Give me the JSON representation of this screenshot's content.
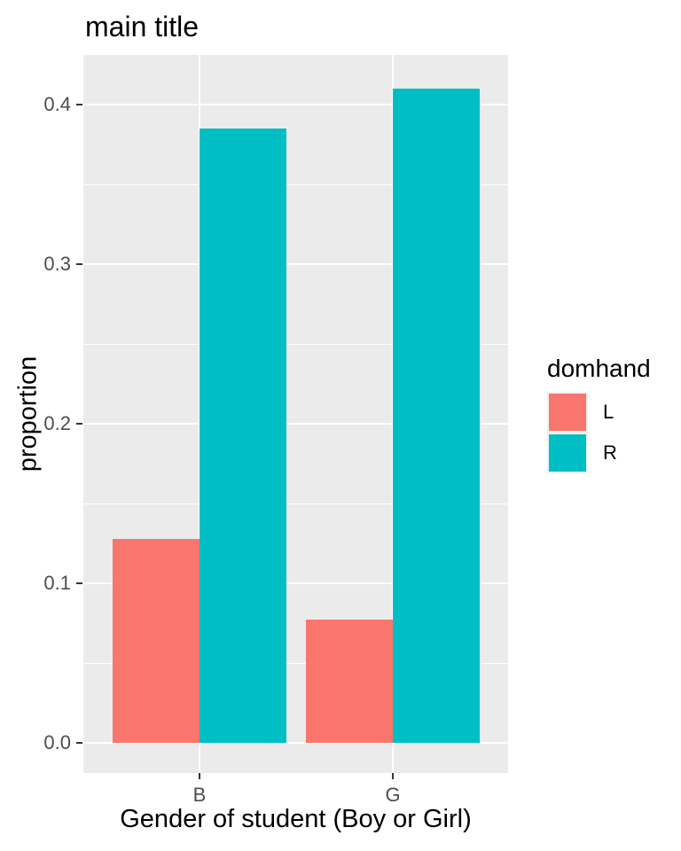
{
  "chart_data": {
    "type": "bar",
    "mode": "dodged",
    "title": "main title",
    "xlabel": "Gender of student (Boy or Girl)",
    "ylabel": "proportion",
    "categories": [
      "B",
      "G"
    ],
    "series": [
      {
        "name": "L",
        "color": "#F8766D",
        "values": [
          0.128,
          0.077
        ]
      },
      {
        "name": "R",
        "color": "#00BFC4",
        "values": [
          0.385,
          0.41
        ]
      }
    ],
    "ylim": [
      0,
      0.43
    ],
    "yticks": [
      "0.0",
      "0.1",
      "0.2",
      "0.3",
      "0.4"
    ],
    "yticks_minor": [
      0.05,
      0.15,
      0.25,
      0.35
    ],
    "grid": "white major and minor horizontal gridlines plus vertical major gridlines on gray panel",
    "legend": {
      "title": "domhand",
      "position": "right",
      "entries": [
        "L",
        "R"
      ]
    }
  },
  "colors": {
    "background": "#FFFFFF",
    "panel_background": "#EBEBEB",
    "gridline": "#FFFFFF",
    "bar_L": "#F8766D",
    "bar_R": "#00BFC4",
    "tick_label": "#4D4D4D",
    "tick_mark": "#333333",
    "title_text": "#000000",
    "legend_key_background": "#F2F2F2"
  }
}
